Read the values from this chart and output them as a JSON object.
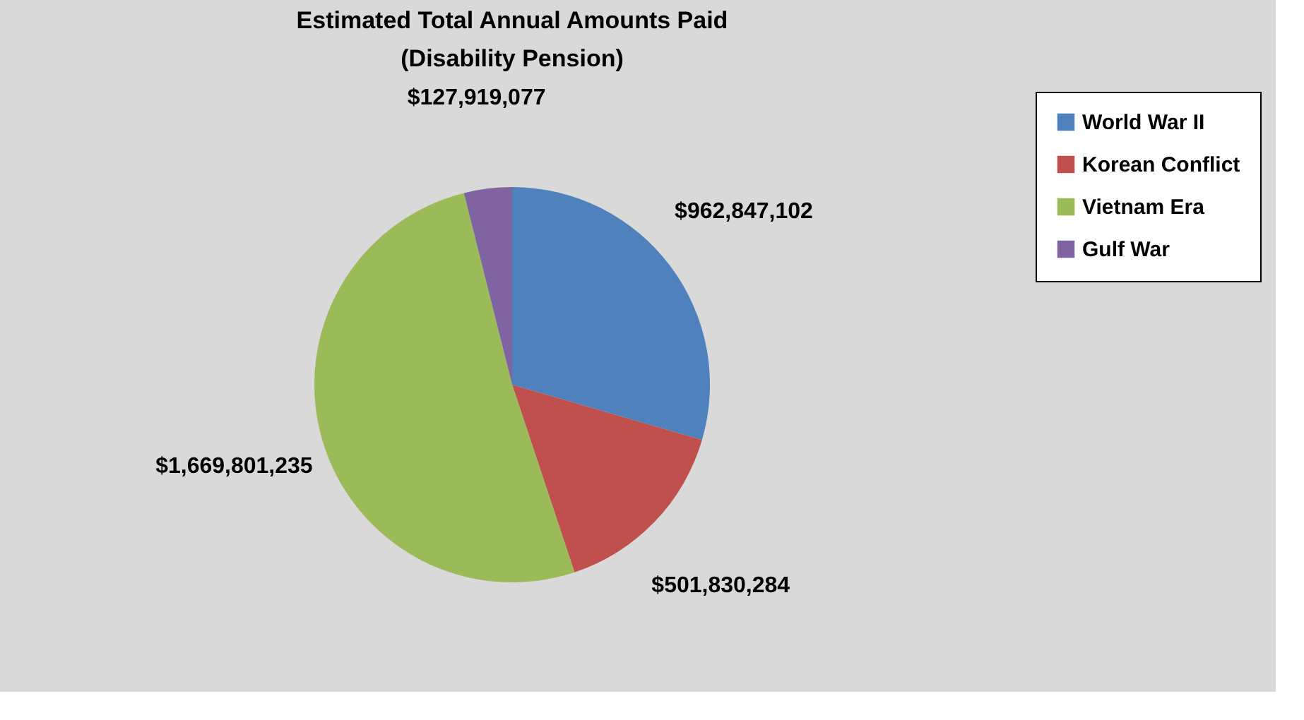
{
  "chart_data": {
    "type": "pie",
    "title": "Estimated Total Annual Amounts Paid",
    "subtitle": "(Disability Pension)",
    "categories": [
      "World War II",
      "Korean Conflict",
      "Vietnam Era",
      "Gulf War"
    ],
    "values": [
      962847102,
      501830284,
      1669801235,
      127919077
    ],
    "colors": [
      "#4f81bd",
      "#c0504d",
      "#9bbb59",
      "#8064a2"
    ],
    "value_labels": [
      "$962,847,102",
      "$501,830,284",
      "$1,669,801,235",
      "$127,919,077"
    ],
    "legend": "right"
  }
}
